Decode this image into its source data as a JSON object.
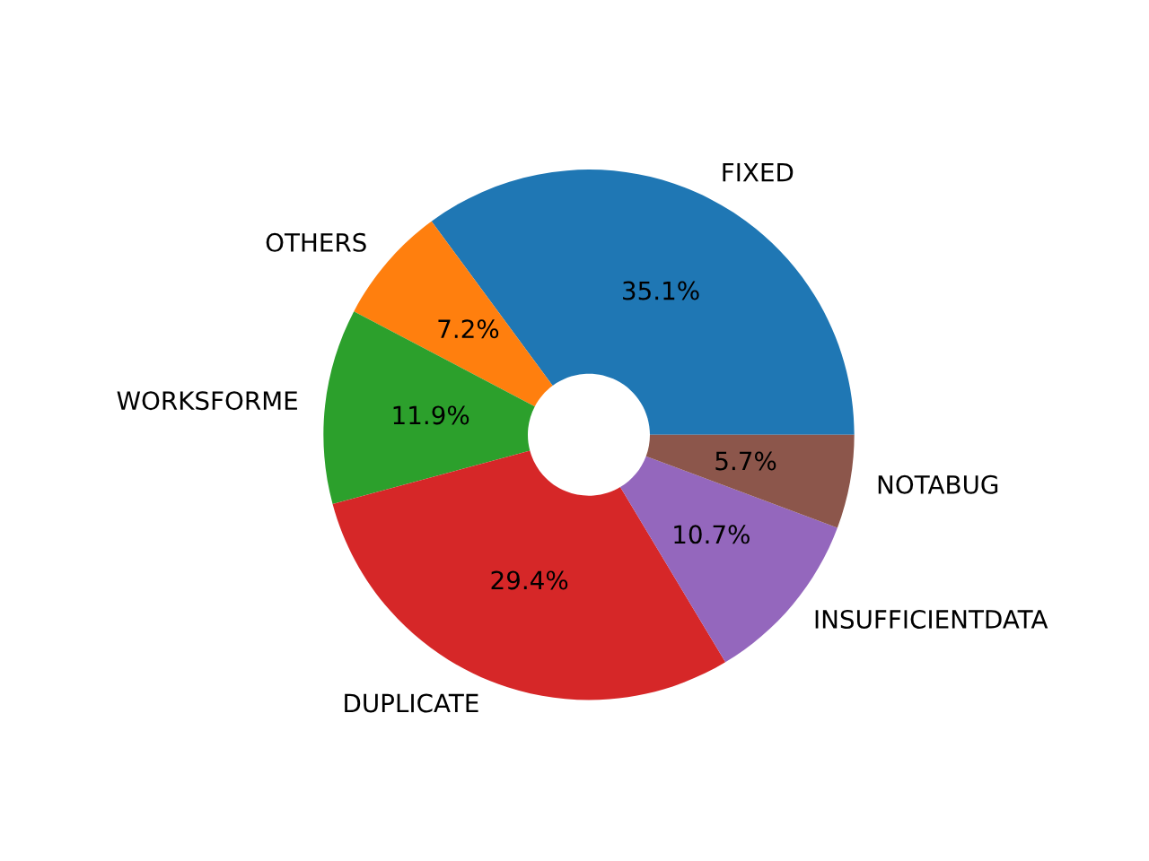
{
  "chart_data": {
    "type": "donut",
    "categories": [
      "FIXED",
      "OTHERS",
      "WORKSFORME",
      "DUPLICATE",
      "INSUFFICIENTDATA",
      "NOTABUG"
    ],
    "values": [
      35.1,
      7.2,
      11.9,
      29.4,
      10.7,
      5.7
    ],
    "colors": [
      "#1f77b4",
      "#ff7f0e",
      "#2ca02c",
      "#d62728",
      "#9467bd",
      "#8c564b"
    ],
    "value_labels": [
      "35.1%",
      "7.2%",
      "11.9%",
      "29.4%",
      "10.7%",
      "5.7%"
    ]
  }
}
